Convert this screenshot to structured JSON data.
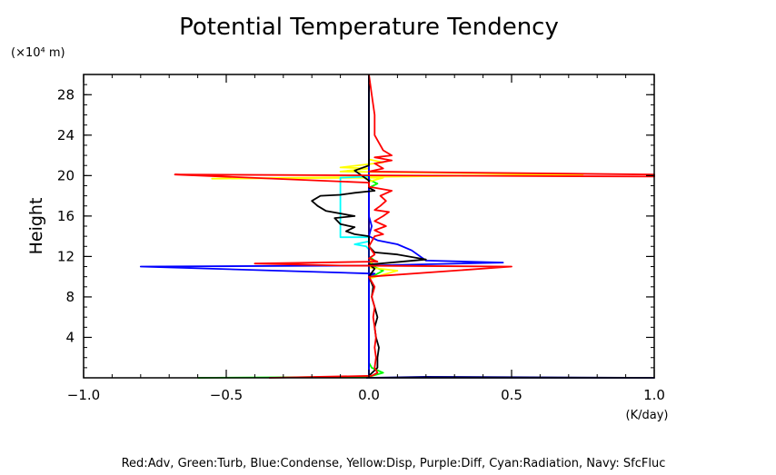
{
  "chart_data": {
    "type": "line",
    "title": "Potential Temperature Tendency",
    "ylabel": "Height",
    "y_unit": "(×10⁴ m)",
    "x_unit": "(K/day)",
    "xlim": [
      -1.0,
      1.0
    ],
    "ylim": [
      0,
      30
    ],
    "x_ticks": [
      "−1.0",
      "−0.5",
      "0.0",
      "0.5",
      "1.0"
    ],
    "x_tick_values": [
      -1.0,
      -0.5,
      0.0,
      0.5,
      1.0
    ],
    "y_ticks": [
      "4",
      "8",
      "12",
      "16",
      "20",
      "24",
      "28"
    ],
    "y_tick_values": [
      4,
      8,
      12,
      16,
      20,
      24,
      28
    ],
    "grid": false,
    "legend_text": "Red:Adv, Green:Turb, Blue:Condense, Yellow:Disp, Purple:Diff, Cyan:Radiation, Navy: SfcFluc",
    "legend_placement": "bottom",
    "series": [
      {
        "color": "#00ff00",
        "points": [
          [
            -0.6,
            0
          ],
          [
            0.0,
            0.1
          ],
          [
            0.05,
            0.5
          ],
          [
            0.01,
            1
          ],
          [
            0.0,
            1.5
          ],
          [
            0.0,
            9.5
          ],
          [
            0.01,
            10
          ],
          [
            0.05,
            10.6
          ],
          [
            0.0,
            11.2
          ],
          [
            0.02,
            11.6
          ],
          [
            0.0,
            12
          ],
          [
            0.0,
            18.8
          ],
          [
            0.03,
            19.2
          ],
          [
            0.0,
            19.6
          ],
          [
            0.0,
            29.5
          ],
          [
            0.0,
            30
          ]
        ]
      },
      {
        "color": "#ffff00",
        "points": [
          [
            0.0,
            0
          ],
          [
            0.0,
            9.8
          ],
          [
            0.1,
            10.6
          ],
          [
            0.0,
            10.9
          ],
          [
            0.01,
            11.3
          ],
          [
            0.0,
            12
          ],
          [
            0.0,
            19.4
          ],
          [
            0.05,
            19.8
          ],
          [
            -0.55,
            19.7
          ],
          [
            0.75,
            20.1
          ],
          [
            -0.1,
            20.4
          ],
          [
            0.0,
            20.7
          ],
          [
            -0.1,
            20.8
          ],
          [
            0.05,
            21.3
          ],
          [
            0.0,
            21.6
          ],
          [
            0.0,
            29.7
          ],
          [
            0.0,
            30
          ]
        ]
      },
      {
        "color": "#ff00ff",
        "points": [
          [
            0.0,
            0
          ],
          [
            0.0,
            30
          ]
        ]
      },
      {
        "color": "#00ffff",
        "points": [
          [
            0.0,
            0
          ],
          [
            0.0,
            12.7
          ],
          [
            -0.01,
            13.0
          ],
          [
            -0.05,
            13.2
          ],
          [
            0.0,
            13.5
          ],
          [
            0.0,
            13.9
          ],
          [
            -0.1,
            13.9
          ],
          [
            -0.1,
            19.8
          ],
          [
            0.0,
            19.9
          ],
          [
            0.0,
            30
          ]
        ]
      },
      {
        "color": "#000080",
        "points": [
          [
            -0.01,
            0
          ],
          [
            0.2,
            0.1
          ],
          [
            1.0,
            0
          ],
          [
            1.0,
            0
          ],
          [
            0.0,
            0.02
          ],
          [
            0.0,
            30
          ]
        ]
      },
      {
        "color": "#0000ff",
        "points": [
          [
            0.0,
            0
          ],
          [
            0.0,
            10.1
          ],
          [
            0.02,
            10.3
          ],
          [
            -0.8,
            11.0
          ],
          [
            0.0,
            11.1
          ],
          [
            0.47,
            11.4
          ],
          [
            0.2,
            11.6
          ],
          [
            0.15,
            12.6
          ],
          [
            0.1,
            13.2
          ],
          [
            0.03,
            13.6
          ],
          [
            0.0,
            14.0
          ],
          [
            0.01,
            15.0
          ],
          [
            0.0,
            16.0
          ],
          [
            0.0,
            30
          ]
        ]
      },
      {
        "color": "#000000",
        "points": [
          [
            0.0,
            0
          ],
          [
            0.0,
            0.2
          ],
          [
            0.03,
            1
          ],
          [
            0.03,
            2
          ],
          [
            0.035,
            3
          ],
          [
            0.025,
            4
          ],
          [
            0.02,
            5
          ],
          [
            0.03,
            6
          ],
          [
            0.02,
            7
          ],
          [
            0.01,
            8
          ],
          [
            0.015,
            9
          ],
          [
            0.0,
            10
          ],
          [
            0.02,
            10.8
          ],
          [
            0.0,
            11.2
          ],
          [
            0.2,
            11.7
          ],
          [
            0.1,
            12.2
          ],
          [
            0.02,
            12.4
          ],
          [
            0.0,
            13.0
          ],
          [
            0.0,
            14.0
          ],
          [
            -0.05,
            14.2
          ],
          [
            -0.08,
            14.5
          ],
          [
            -0.05,
            14.9
          ],
          [
            -0.1,
            15.2
          ],
          [
            -0.12,
            15.8
          ],
          [
            -0.05,
            16.0
          ],
          [
            -0.15,
            16.5
          ],
          [
            -0.18,
            17.0
          ],
          [
            -0.2,
            17.5
          ],
          [
            -0.17,
            18.0
          ],
          [
            -0.1,
            18.1
          ],
          [
            -0.05,
            18.3
          ],
          [
            0.02,
            18.5
          ],
          [
            0.0,
            18.8
          ],
          [
            0.0,
            19.5
          ],
          [
            -0.05,
            20.5
          ],
          [
            0.0,
            21.0
          ],
          [
            0.0,
            30
          ]
        ]
      },
      {
        "color": "#ff0000",
        "points": [
          [
            -0.35,
            0
          ],
          [
            0.01,
            0.2
          ],
          [
            0.03,
            0.5
          ],
          [
            0.02,
            1
          ],
          [
            0.025,
            2
          ],
          [
            0.02,
            3
          ],
          [
            0.025,
            4
          ],
          [
            0.02,
            5
          ],
          [
            0.015,
            6
          ],
          [
            0.02,
            7
          ],
          [
            0.01,
            8
          ],
          [
            0.02,
            9
          ],
          [
            0.0,
            10
          ],
          [
            0.5,
            11.0
          ],
          [
            -0.1,
            11.1
          ],
          [
            -0.4,
            11.3
          ],
          [
            0.03,
            11.5
          ],
          [
            0.0,
            11.8
          ],
          [
            0.02,
            12.2
          ],
          [
            0.0,
            13.0
          ],
          [
            0.02,
            14.0
          ],
          [
            0.05,
            14.2
          ],
          [
            0.02,
            14.6
          ],
          [
            0.06,
            15.0
          ],
          [
            0.02,
            15.5
          ],
          [
            0.05,
            16.0
          ],
          [
            0.07,
            16.4
          ],
          [
            0.02,
            16.6
          ],
          [
            0.04,
            17.0
          ],
          [
            0.06,
            17.5
          ],
          [
            0.04,
            18.0
          ],
          [
            0.08,
            18.5
          ],
          [
            0.0,
            18.9
          ],
          [
            0.0,
            19.3
          ],
          [
            -0.68,
            20.1
          ],
          [
            1.0,
            19.9
          ],
          [
            1.0,
            20.1
          ],
          [
            0.0,
            20.4
          ],
          [
            0.05,
            20.7
          ],
          [
            0.02,
            21.2
          ],
          [
            0.08,
            21.5
          ],
          [
            0.02,
            21.8
          ],
          [
            0.08,
            22.0
          ],
          [
            0.05,
            22.5
          ],
          [
            0.02,
            24
          ],
          [
            0.02,
            26
          ],
          [
            0.01,
            28
          ],
          [
            0.0,
            30
          ]
        ]
      }
    ]
  }
}
